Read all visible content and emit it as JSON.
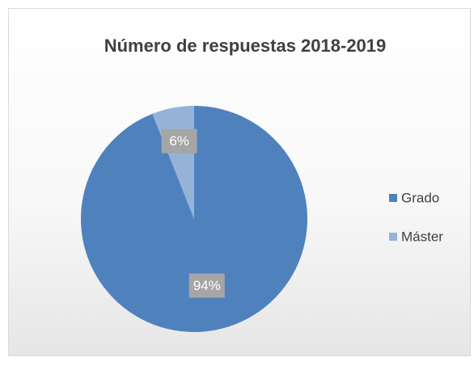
{
  "chart_data": {
    "type": "pie",
    "title": "Número de respuestas 2018-2019",
    "categories": [
      "Grado",
      "Máster"
    ],
    "values": [
      94,
      6
    ],
    "value_labels": [
      "94%",
      "6%"
    ],
    "colors": [
      "#4f81bd",
      "#95b3d7"
    ],
    "legend": "right"
  }
}
